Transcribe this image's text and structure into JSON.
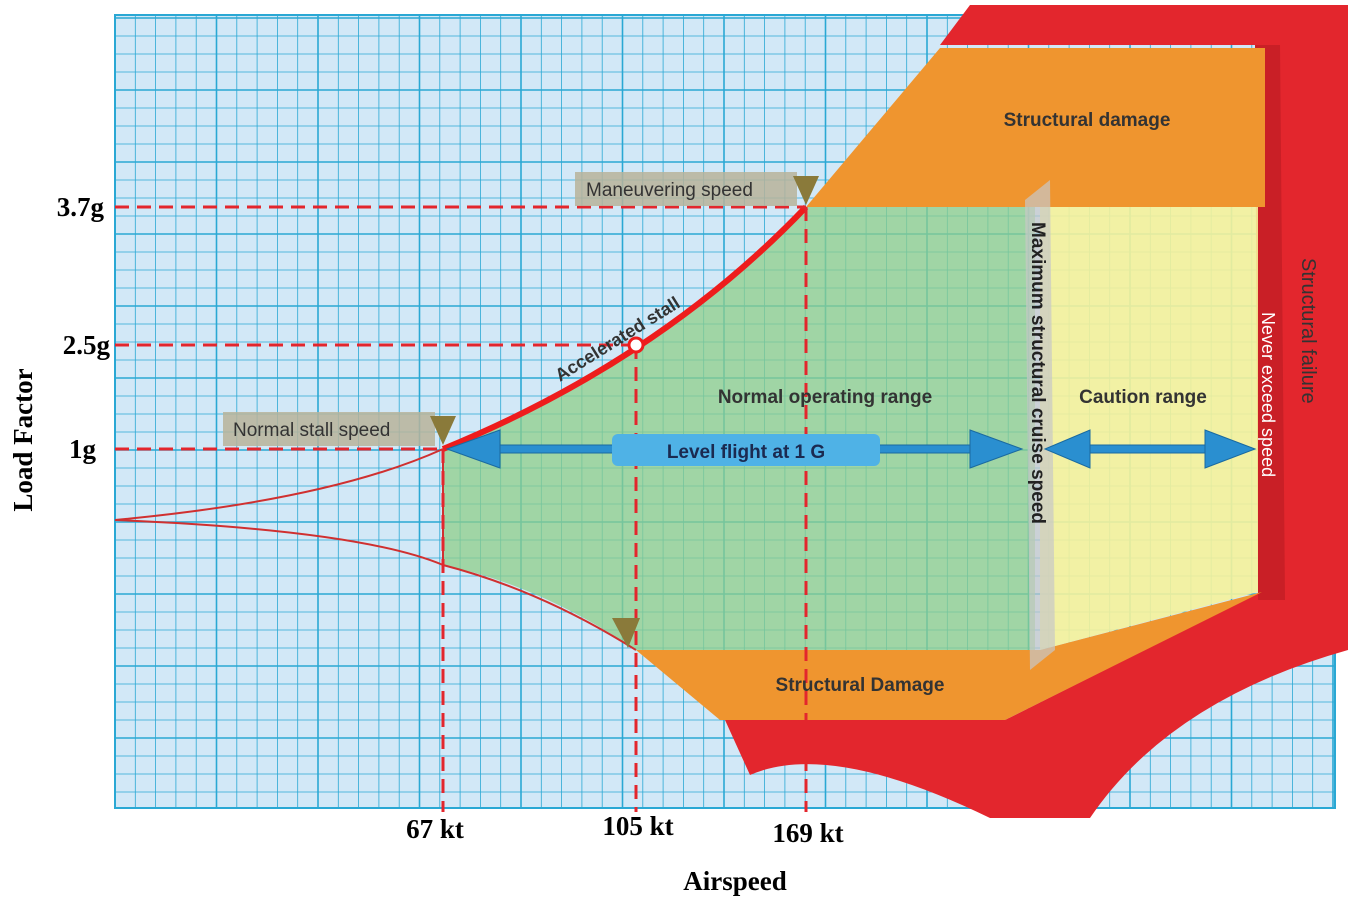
{
  "axes": {
    "y_title": "Load Factor",
    "x_title": "Airspeed",
    "y_labels": [
      "3.7g",
      "2.5g",
      "1g"
    ],
    "x_labels": [
      "67 kt",
      "105 kt",
      "169 kt"
    ]
  },
  "regions": {
    "structural_damage_top": "Structural damage",
    "structural_damage_bottom": "Structural Damage",
    "normal": "Normal operating range",
    "caution": "Caution range",
    "failure": "Structural  failure"
  },
  "markers": {
    "normal_stall": "Normal stall speed",
    "maneuvering": "Maneuvering speed",
    "accelerated_stall": "Accelerated stall",
    "level_flight": "Level flight at 1 G",
    "cruise": "Maximum structural cruise speed",
    "never_exceed": "Never exceed speed"
  }
}
